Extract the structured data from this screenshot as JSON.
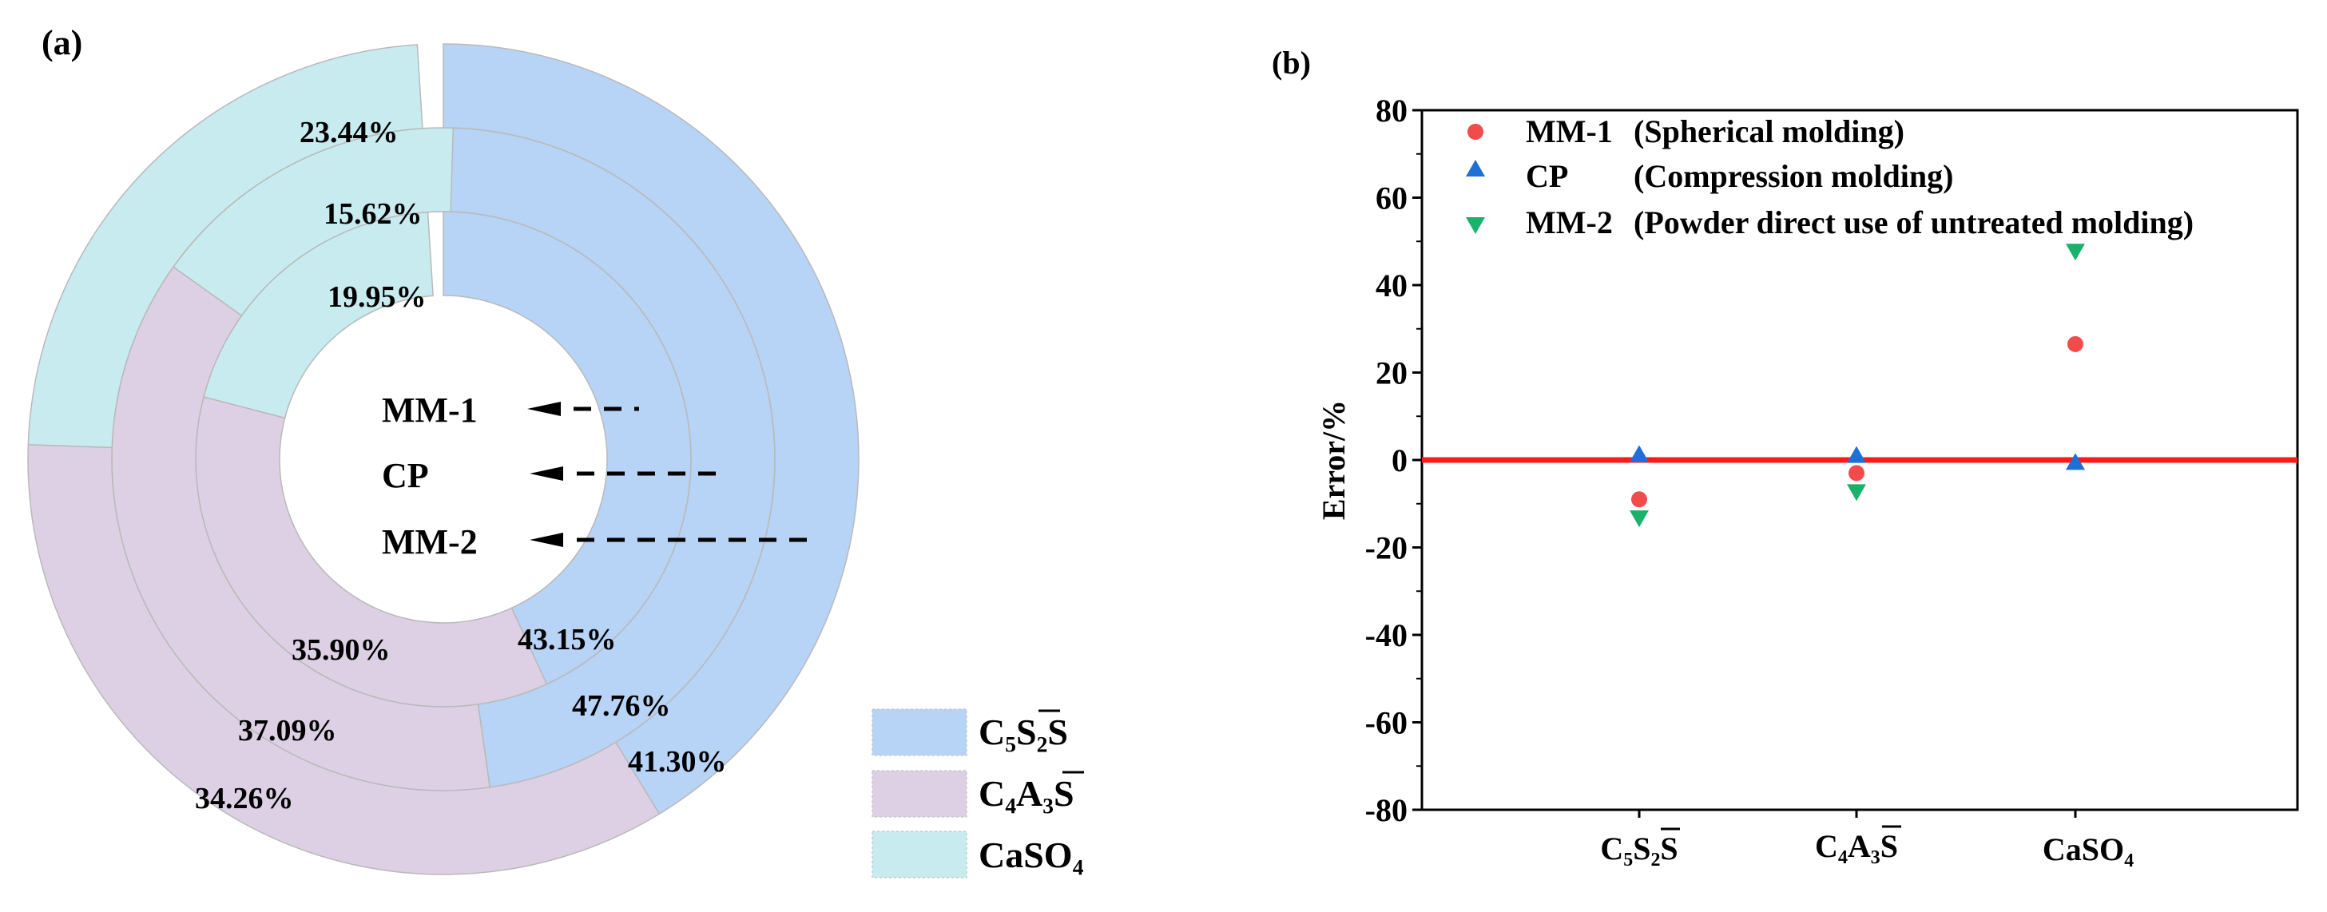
{
  "chart_data": [
    {
      "type": "pie",
      "panel_label": "(a)",
      "rings": [
        "MM-1",
        "CP",
        "MM-2"
      ],
      "phases": [
        {
          "name": "C5S2S",
          "color": "#b7d3f6",
          "values": [
            43.15,
            47.76,
            41.3
          ]
        },
        {
          "name": "C4A3S",
          "color": "#ddd0e4",
          "values": [
            35.9,
            37.09,
            34.26
          ]
        },
        {
          "name": "CaSO4",
          "color": "#c8ebf0",
          "values": [
            19.95,
            15.62,
            23.44
          ]
        }
      ],
      "labels": {
        "c5s2s": [
          "43.15%",
          "47.76%",
          "41.30%"
        ],
        "c4a3s": [
          "35.90%",
          "37.09%",
          "34.26%"
        ],
        "caso4": [
          "19.95%",
          "15.62%",
          "23.44%"
        ]
      },
      "legend": {
        "c5s2s": "C₅S₂S",
        "c4a3s": "C₄A₃S",
        "caso4": "CaSO₄"
      }
    },
    {
      "type": "scatter",
      "panel_label": "(b)",
      "ylabel": "Error/%",
      "ylim": [
        -80,
        80
      ],
      "yticks": [
        80,
        60,
        40,
        20,
        0,
        -20,
        -40,
        -60,
        -80
      ],
      "ytick_labels": [
        "80",
        "60",
        "40",
        "20",
        "0",
        "-20",
        "-40",
        "-60",
        "-80"
      ],
      "categories": [
        "C5S2S",
        "C4A3S",
        "CaSO4"
      ],
      "xtick_labels": {
        "c5s2s": "C₅S₂S",
        "c4a3s": "C₄A₃S",
        "caso4": "CaSO₄"
      },
      "reference_line": 0,
      "series": [
        {
          "name": "MM-1",
          "label_a": "MM-1",
          "label_b": "(Spherical molding)",
          "marker": "circle",
          "color": "#f24b4b",
          "values": [
            -9,
            -3,
            26.5
          ]
        },
        {
          "name": "CP",
          "label_a": "CP",
          "label_b": "(Compression molding)",
          "marker": "triangle-up",
          "color": "#1f6fd6",
          "values": [
            1,
            0.8,
            -0.8
          ]
        },
        {
          "name": "MM-2",
          "label_a": "MM-2",
          "label_b": "(Powder direct use of untreated molding)",
          "marker": "triangle-down",
          "color": "#19b26b",
          "values": [
            -13,
            -7,
            48
          ]
        }
      ]
    }
  ]
}
